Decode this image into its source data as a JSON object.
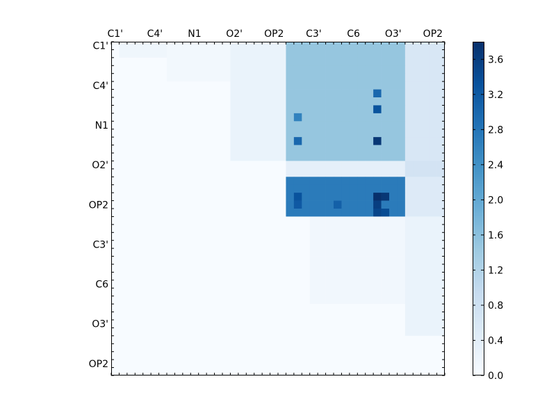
{
  "chart_data": {
    "type": "heatmap",
    "title": "",
    "xlabel": "",
    "ylabel": "",
    "grid": false,
    "colormap": "Blues",
    "colormap_low": "#f7fbff",
    "colormap_high": "#08306b",
    "x_tick_labels": [
      "C1'",
      "C4'",
      "N1",
      "O2'",
      "OP2",
      "C3'",
      "C6",
      "O3'",
      "OP2"
    ],
    "y_tick_labels": [
      "C1'",
      "C4'",
      "N1",
      "O2'",
      "OP2",
      "C3'",
      "C6",
      "O3'",
      "OP2"
    ],
    "tick_label_spacing": 5,
    "n_rows": 42,
    "n_cols": 42,
    "colorbar": {
      "range": [
        0.0,
        3.8
      ],
      "ticks": [
        0.0,
        0.4,
        0.8,
        1.2,
        1.6,
        2.0,
        2.4,
        2.8,
        3.2,
        3.6
      ],
      "tick_labels": [
        "0.0",
        "0.4",
        "0.8",
        "1.2",
        "1.6",
        "2.0",
        "2.4",
        "2.8",
        "3.2",
        "3.6"
      ]
    },
    "blocks": [
      {
        "rows": [
          0,
          2
        ],
        "cols": [
          1,
          7
        ],
        "value": 0.15
      },
      {
        "rows": [
          0,
          5
        ],
        "cols": [
          7,
          15
        ],
        "value": 0.1
      },
      {
        "rows": [
          0,
          15
        ],
        "cols": [
          15,
          22
        ],
        "value": 0.25
      },
      {
        "rows": [
          0,
          15
        ],
        "cols": [
          22,
          37
        ],
        "value": 1.5
      },
      {
        "rows": [
          0,
          15
        ],
        "cols": [
          37,
          42
        ],
        "value": 0.6
      },
      {
        "rows": [
          15,
          17
        ],
        "cols": [
          22,
          37
        ],
        "value": 0.35
      },
      {
        "rows": [
          15,
          17
        ],
        "cols": [
          37,
          42
        ],
        "value": 0.7
      },
      {
        "rows": [
          17,
          22
        ],
        "cols": [
          22,
          37
        ],
        "value": 2.7
      },
      {
        "rows": [
          17,
          22
        ],
        "cols": [
          37,
          42
        ],
        "value": 0.5
      },
      {
        "rows": [
          22,
          33
        ],
        "cols": [
          25,
          37
        ],
        "value": 0.12
      },
      {
        "rows": [
          22,
          37
        ],
        "cols": [
          37,
          42
        ],
        "value": 0.25
      }
    ],
    "hotspots": [
      {
        "row": 6,
        "col": 33,
        "value": 3.0
      },
      {
        "row": 8,
        "col": 33,
        "value": 3.3
      },
      {
        "row": 12,
        "col": 33,
        "value": 3.7
      },
      {
        "row": 12,
        "col": 23,
        "value": 3.0
      },
      {
        "row": 9,
        "col": 23,
        "value": 2.6
      },
      {
        "row": 19,
        "col": 33,
        "value": 3.8
      },
      {
        "row": 19,
        "col": 34,
        "value": 3.7
      },
      {
        "row": 20,
        "col": 33,
        "value": 3.6
      },
      {
        "row": 21,
        "col": 33,
        "value": 3.5
      },
      {
        "row": 19,
        "col": 23,
        "value": 3.3
      },
      {
        "row": 20,
        "col": 23,
        "value": 3.2
      },
      {
        "row": 20,
        "col": 28,
        "value": 3.1
      },
      {
        "row": 21,
        "col": 34,
        "value": 3.4
      }
    ]
  }
}
